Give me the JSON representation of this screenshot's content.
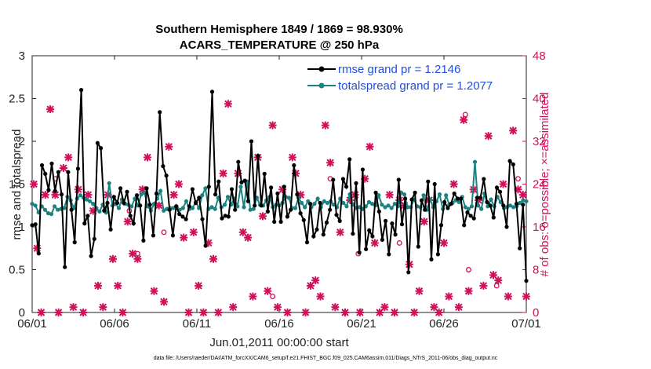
{
  "chart_data": {
    "type": "line",
    "title": [
      "Southern Hemisphere 1849 / 1869 = 98.930%",
      "ACARS_TEMPERATURE @ 250 hPa"
    ],
    "xlabel": "Jun.01,2011 00:00:00 start",
    "ylabel": "rmse and totalspread",
    "ylabel_right": "# of obs: o=possible; ×=assimilated",
    "x_ticks": [
      "06/01",
      "06/06",
      "06/11",
      "06/16",
      "06/21",
      "06/26",
      "07/01"
    ],
    "xlim": [
      0,
      30
    ],
    "ylim": [
      0,
      3
    ],
    "y_ticks": [
      "0",
      "0.5",
      "1",
      "1.5",
      "2",
      "2.5",
      "3"
    ],
    "ylim_right": [
      0,
      48
    ],
    "y_ticks_right": [
      "0",
      "8",
      "16",
      "24",
      "32",
      "40",
      "48"
    ],
    "grid": false,
    "legend_position": "top-right",
    "series": [
      {
        "name": "rmse grand pr = 1.2146",
        "color": "#000000",
        "values": [
          1.02,
          1.03,
          0.69,
          1.72,
          1.62,
          1.43,
          1.74,
          1.42,
          1.64,
          1.38,
          0.53,
          1.64,
          1.2,
          0.82,
          1.68,
          2.6,
          1.04,
          1.13,
          0.66,
          0.86,
          1.98,
          1.92,
          1.19,
          1.28,
          0.97,
          1.35,
          1.28,
          1.45,
          1.28,
          1.41,
          1.13,
          1.04,
          1.37,
          1.25,
          0.84,
          1.45,
          1.26,
          0.9,
          1.39,
          2.34,
          1.71,
          1.6,
          1.2,
          0.9,
          1.24,
          1.15,
          1.12,
          1.09,
          1.24,
          1.44,
          1.28,
          1.34,
          1.09,
          0.78,
          1.47,
          2.58,
          1.38,
          1.53,
          1.1,
          1.13,
          1.12,
          1.44,
          1.2,
          1.76,
          1.52,
          1.54,
          1.3,
          2.0,
          1.25,
          1.83,
          1.25,
          1.62,
          1.18,
          1.46,
          1.06,
          1.39,
          1.06,
          1.47,
          1.12,
          1.2,
          1.72,
          1.38,
          1.16,
          1.08,
          0.82,
          1.27,
          0.89,
          0.97,
          1.28,
          0.91,
          1.05,
          1.2,
          1.55,
          1.14,
          1.07,
          1.56,
          1.47,
          1.79,
          0.92,
          1.51,
          0.7,
          1.67,
          0.74,
          0.96,
          0.89,
          1.4,
          1.18,
          0.85,
          1.07,
          0.68,
          1.04,
          0.91,
          1.55,
          1.03,
          1.33,
          0.47,
          1.32,
          1.4,
          0.77,
          1.31,
          1.2,
          1.53,
          0.62,
          1.5,
          0.68,
          1.02,
          1.29,
          1.22,
          1.27,
          1.39,
          1.33,
          1.33,
          1.02,
          1.17,
          1.13,
          1.1,
          1.34,
          1.34,
          1.56,
          1.29,
          1.25,
          1.11,
          1.46,
          1.41,
          1.25,
          1.0,
          1.77,
          1.73,
          1.27,
          0.75,
          1.26,
          0.37
        ],
        "values_note": "estimated from plot"
      },
      {
        "name": "totalspread grand pr = 1.2077",
        "color": "#1b8282",
        "values": [
          1.27,
          1.25,
          1.17,
          1.24,
          1.2,
          1.16,
          1.15,
          1.24,
          1.2,
          1.21,
          1.22,
          1.35,
          1.31,
          1.22,
          1.33,
          1.37,
          1.34,
          1.32,
          1.3,
          1.27,
          1.22,
          1.18,
          1.26,
          1.17,
          1.51,
          1.25,
          1.27,
          1.22,
          1.32,
          1.27,
          1.26,
          1.24,
          1.33,
          1.25,
          1.38,
          1.4,
          1.24,
          1.19,
          1.27,
          1.33,
          1.42,
          1.19,
          1.21,
          1.22,
          1.22,
          1.24,
          1.2,
          1.22,
          1.3,
          1.21,
          1.22,
          1.29,
          1.22,
          1.37,
          1.45,
          1.21,
          1.23,
          1.21,
          1.34,
          1.23,
          1.26,
          1.35,
          1.26,
          1.33,
          1.24,
          1.47,
          1.23,
          1.53,
          1.2,
          1.21,
          1.34,
          1.26,
          1.25,
          1.31,
          1.35,
          1.23,
          1.26,
          1.25,
          1.28,
          1.35,
          1.34,
          1.22,
          1.22,
          1.34,
          1.28,
          1.23,
          1.3,
          1.23,
          1.27,
          1.33,
          1.23,
          1.3,
          1.28,
          1.3,
          1.26,
          1.23,
          1.33,
          1.28,
          1.24,
          1.38,
          1.26,
          1.22,
          1.23,
          1.21,
          1.24,
          1.29,
          1.27,
          1.25,
          1.37,
          1.26,
          1.23,
          1.25,
          1.22,
          1.27,
          1.24,
          1.4,
          1.38,
          1.23,
          1.23,
          1.32,
          1.24,
          1.23,
          1.37,
          1.2,
          1.32,
          1.23,
          1.3,
          1.38,
          1.21,
          1.37,
          1.26,
          1.28,
          1.31,
          1.29,
          1.35,
          1.23,
          1.21,
          1.24,
          1.76,
          1.25,
          1.21,
          1.39,
          1.24,
          1.32,
          1.24,
          1.35,
          1.29,
          1.22,
          1.23,
          1.25,
          1.23,
          1.24,
          1.28,
          1.31,
          1.3
        ],
        "values_note": "estimated from plot"
      }
    ],
    "obs_assimilated": {
      "name": "# of obs assimilated (×, right axis)",
      "color": "#d0105a",
      "points": [
        [
          0.1,
          24
        ],
        [
          0.3,
          12
        ],
        [
          0.55,
          0
        ],
        [
          0.8,
          22
        ],
        [
          1.1,
          38
        ],
        [
          1.4,
          22
        ],
        [
          1.6,
          0
        ],
        [
          1.9,
          27
        ],
        [
          2.2,
          29
        ],
        [
          2.5,
          1
        ],
        [
          2.8,
          23
        ],
        [
          3.1,
          0
        ],
        [
          3.4,
          22
        ],
        [
          3.7,
          19
        ],
        [
          4.0,
          5
        ],
        [
          4.3,
          1
        ],
        [
          4.6,
          22
        ],
        [
          4.9,
          10
        ],
        [
          5.2,
          5
        ],
        [
          5.5,
          0
        ],
        [
          5.8,
          17
        ],
        [
          6.1,
          11
        ],
        [
          6.4,
          10
        ],
        [
          6.7,
          23
        ],
        [
          7.0,
          29
        ],
        [
          7.4,
          4
        ],
        [
          7.7,
          20
        ],
        [
          8.0,
          2
        ],
        [
          8.3,
          31
        ],
        [
          8.6,
          22
        ],
        [
          8.9,
          24
        ],
        [
          9.2,
          14
        ],
        [
          9.5,
          0
        ],
        [
          9.8,
          15
        ],
        [
          10.1,
          5
        ],
        [
          10.4,
          0
        ],
        [
          10.7,
          13
        ],
        [
          11.0,
          10
        ],
        [
          11.3,
          0
        ],
        [
          11.6,
          26
        ],
        [
          11.9,
          39
        ],
        [
          12.2,
          1
        ],
        [
          12.5,
          26
        ],
        [
          12.8,
          15
        ],
        [
          13.1,
          14
        ],
        [
          13.4,
          3
        ],
        [
          13.7,
          29
        ],
        [
          14.0,
          18
        ],
        [
          14.3,
          4
        ],
        [
          14.6,
          35
        ],
        [
          14.9,
          1
        ],
        [
          15.2,
          23
        ],
        [
          15.5,
          0
        ],
        [
          15.8,
          29
        ],
        [
          16.0,
          26
        ],
        [
          16.3,
          22
        ],
        [
          16.6,
          0
        ],
        [
          16.9,
          5
        ],
        [
          17.2,
          6
        ],
        [
          17.5,
          3
        ],
        [
          17.8,
          35
        ],
        [
          18.1,
          28
        ],
        [
          18.4,
          1
        ],
        [
          18.7,
          15
        ],
        [
          19.0,
          0
        ],
        [
          19.3,
          21
        ],
        [
          19.6,
          22
        ],
        [
          19.9,
          0
        ],
        [
          20.2,
          25
        ],
        [
          20.5,
          31
        ],
        [
          20.8,
          13
        ],
        [
          21.1,
          0
        ],
        [
          21.4,
          1
        ],
        [
          21.7,
          22
        ],
        [
          22.0,
          0
        ],
        [
          22.3,
          21
        ],
        [
          22.6,
          20
        ],
        [
          22.9,
          9
        ],
        [
          23.2,
          0
        ],
        [
          23.5,
          4
        ],
        [
          23.8,
          17
        ],
        [
          24.1,
          21
        ],
        [
          24.4,
          1
        ],
        [
          24.7,
          0
        ],
        [
          25.0,
          13
        ],
        [
          25.3,
          3
        ],
        [
          25.6,
          24
        ],
        [
          25.9,
          1
        ],
        [
          26.2,
          36
        ],
        [
          26.5,
          4
        ],
        [
          26.8,
          23
        ],
        [
          27.1,
          21
        ],
        [
          27.4,
          5
        ],
        [
          27.7,
          33
        ],
        [
          28.0,
          7
        ],
        [
          28.3,
          6
        ],
        [
          28.6,
          24
        ],
        [
          28.9,
          3
        ],
        [
          29.2,
          34
        ],
        [
          29.5,
          23
        ],
        [
          29.8,
          22
        ],
        [
          30.0,
          3
        ]
      ],
      "values_note": "estimated from plot"
    },
    "obs_possible": {
      "name": "# of obs possible (o, right axis)",
      "color": "#d0105a",
      "points": [
        [
          1.4,
          25
        ],
        [
          5.9,
          19
        ],
        [
          6.4,
          11
        ],
        [
          14.6,
          3
        ],
        [
          18.1,
          25
        ],
        [
          19.8,
          11
        ],
        [
          26.3,
          37
        ],
        [
          26.5,
          8
        ],
        [
          28.2,
          5
        ],
        [
          29.5,
          25
        ],
        [
          8.0,
          15
        ],
        [
          22.3,
          13
        ]
      ],
      "values_note": "estimated from plot"
    }
  },
  "legend": {
    "rmse": "rmse grand pr = 1.2146",
    "spread": "totalspread grand pr = 1.2077"
  },
  "footer": "data file: /Users/raeder/DAI/ATM_forcXX/CAM6_setup/f.e21.FHIST_BGC.f09_025.CAM6assim.011/Diags_NTrS_2011-06/obs_diag_output.nc"
}
